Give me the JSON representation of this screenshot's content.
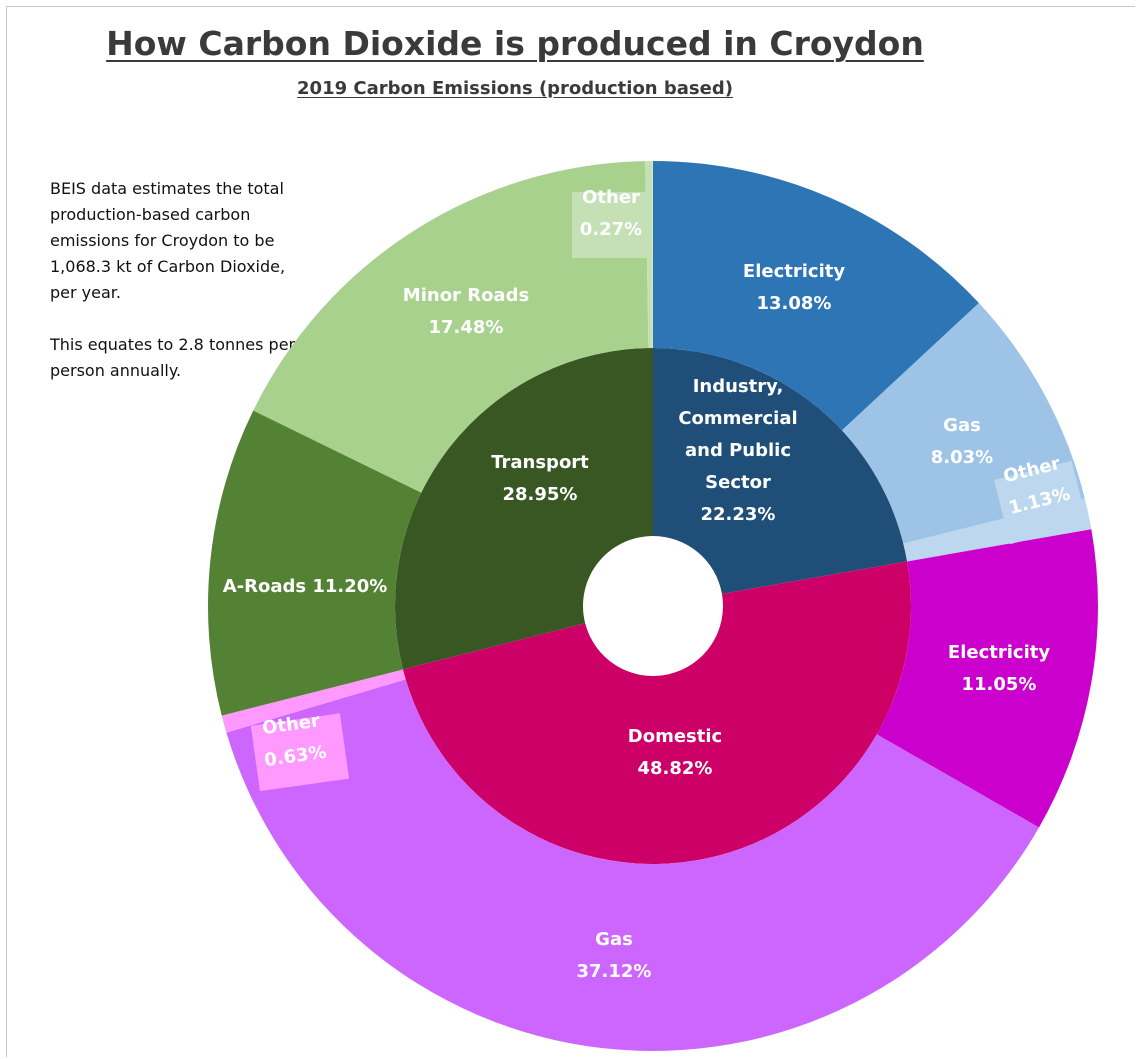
{
  "chart_data": {
    "type": "pie",
    "subtype": "sunburst",
    "title": "How Carbon Dioxide is produced in Croydon",
    "subtitle": "2019 Carbon Emissions (production based)",
    "inner_ring": [
      {
        "name": "Industry, Commercial and Public Sector",
        "label_lines": [
          "Industry,",
          "Commercial",
          "and Public",
          "Sector",
          "22.23%"
        ],
        "value": 22.23,
        "color": "#1f4e79"
      },
      {
        "name": "Domestic",
        "label_lines": [
          "Domestic",
          "48.82%"
        ],
        "value": 48.82,
        "color": "#cc0066"
      },
      {
        "name": "Transport",
        "label_lines": [
          "Transport",
          "28.95%"
        ],
        "value": 28.95,
        "color": "#385723"
      }
    ],
    "outer_ring": [
      {
        "parent": "Industry, Commercial and Public Sector",
        "name": "Electricity",
        "label_lines": [
          "Electricity",
          "13.08%"
        ],
        "value": 13.08,
        "color": "#2e75b6"
      },
      {
        "parent": "Industry, Commercial and Public Sector",
        "name": "Gas",
        "label_lines": [
          "Gas",
          "8.03%"
        ],
        "value": 8.03,
        "color": "#9dc3e6"
      },
      {
        "parent": "Industry, Commercial and Public Sector",
        "name": "Other",
        "label_lines": [
          "Other",
          "1.13%"
        ],
        "value": 1.13,
        "color": "#bdd7ee"
      },
      {
        "parent": "Domestic",
        "name": "Electricity",
        "label_lines": [
          "Electricity",
          "11.05%"
        ],
        "value": 11.05,
        "color": "#cc00cc"
      },
      {
        "parent": "Domestic",
        "name": "Gas",
        "label_lines": [
          "Gas",
          "37.12%"
        ],
        "value": 37.12,
        "color": "#cc66ff"
      },
      {
        "parent": "Domestic",
        "name": "Other",
        "label_lines": [
          "Other",
          "0.63%"
        ],
        "value": 0.63,
        "color": "#ff99ff"
      },
      {
        "parent": "Transport",
        "name": "A-Roads",
        "label_lines": [
          "A-Roads 11.20%"
        ],
        "value": 11.2,
        "color": "#548235"
      },
      {
        "parent": "Transport",
        "name": "Minor Roads",
        "label_lines": [
          "Minor Roads",
          "17.48%"
        ],
        "value": 17.48,
        "color": "#a9d18e"
      },
      {
        "parent": "Transport",
        "name": "Other",
        "label_lines": [
          "Other",
          "0.27%"
        ],
        "value": 0.27,
        "color": "#c5e0b4"
      }
    ]
  },
  "note": {
    "paragraph1": "BEIS data estimates the total production-based carbon emissions for Croydon to be 1,068.3 kt of Carbon Dioxide, per year.",
    "paragraph2": "This equates to 2.8 tonnes per person annually."
  }
}
